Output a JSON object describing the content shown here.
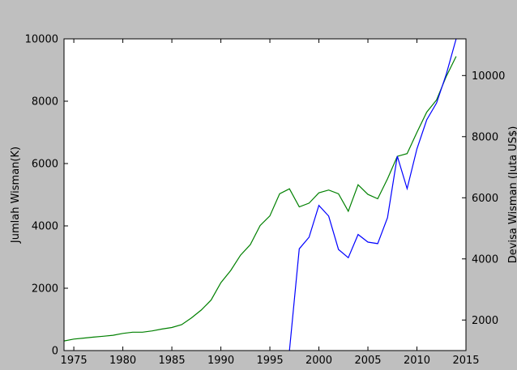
{
  "chart_data": {
    "type": "line",
    "title": "",
    "xlabel": "",
    "ylabel_left": "Jumlah Wisman(K)",
    "ylabel_right": "Devisa Wisman (Juta US$)",
    "xlim": [
      1974,
      2015
    ],
    "ylim_left": [
      0,
      10000
    ],
    "ylim_right": [
      1000,
      11200
    ],
    "x_ticks": [
      1975,
      1980,
      1985,
      1990,
      1995,
      2000,
      2005,
      2010,
      2015
    ],
    "y_left_ticks": [
      0,
      2000,
      4000,
      6000,
      8000,
      10000
    ],
    "y_right_ticks": [
      2000,
      4000,
      6000,
      8000,
      10000
    ],
    "grid": false,
    "series": [
      {
        "axis": "left",
        "color": "#008000",
        "x": [
          1974,
          1975,
          1976,
          1977,
          1978,
          1979,
          1980,
          1981,
          1982,
          1983,
          1984,
          1985,
          1986,
          1987,
          1988,
          1989,
          1990,
          1991,
          1992,
          1993,
          1994,
          1995,
          1996,
          1997,
          1998,
          1999,
          2000,
          2001,
          2002,
          2003,
          2004,
          2005,
          2006,
          2007,
          2008,
          2009,
          2010,
          2011,
          2012,
          2013,
          2014
        ],
        "values": [
          310,
          370,
          400,
          430,
          460,
          490,
          550,
          590,
          590,
          630,
          690,
          740,
          830,
          1050,
          1300,
          1620,
          2180,
          2570,
          3060,
          3400,
          4010,
          4320,
          5030,
          5190,
          4610,
          4730,
          5060,
          5150,
          5030,
          4470,
          5320,
          5010,
          4870,
          5510,
          6230,
          6320,
          7000,
          7650,
          8040,
          8800,
          9440
        ]
      },
      {
        "axis": "right",
        "color": "#0000ff",
        "x": [
          1997,
          1998,
          1999,
          2000,
          2001,
          2002,
          2003,
          2004,
          2005,
          2006,
          2007,
          2008,
          2009,
          2010,
          2011,
          2012,
          2013,
          2014
        ],
        "values": [
          1000,
          4330,
          4710,
          5750,
          5400,
          4310,
          4040,
          4800,
          4550,
          4500,
          5350,
          7360,
          6300,
          7600,
          8550,
          9100,
          10050,
          11200
        ]
      }
    ]
  }
}
